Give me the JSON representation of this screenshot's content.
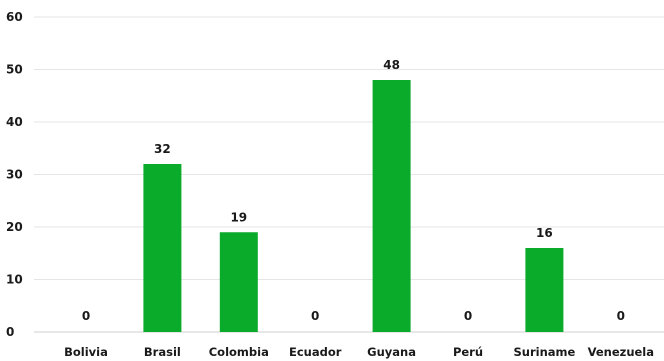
{
  "chart_data": {
    "type": "bar",
    "categories": [
      "Bolivia",
      "Brasil",
      "Colombia",
      "Ecuador",
      "Guyana",
      "Perú",
      "Suriname",
      "Venezuela"
    ],
    "values": [
      0,
      32,
      19,
      0,
      48,
      0,
      16,
      0
    ],
    "data_labels": [
      "0",
      "32",
      "19",
      "0",
      "48",
      "0",
      "16",
      "0"
    ],
    "y_ticks": [
      0,
      10,
      20,
      30,
      40,
      50,
      60
    ],
    "ylim": [
      0,
      60
    ],
    "title": "",
    "xlabel": "",
    "ylabel": "",
    "grid": true,
    "legend": "none",
    "bar_color": "#0aaa2a"
  }
}
